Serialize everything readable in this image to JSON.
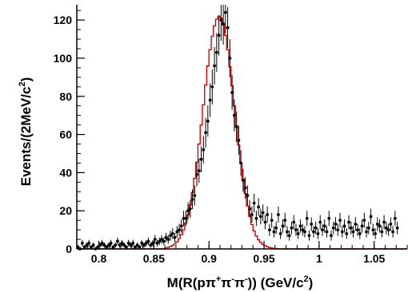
{
  "chart_data": {
    "type": "scatter",
    "title": "",
    "xlabel": {
      "main": "M(R(p",
      "pi1": "π",
      "sup1": "+",
      "pi2": "π",
      "sup2": "-",
      "pi3": "π",
      "sup3": "-",
      "tail": ")) (GeV/c",
      "sup_unit": "2",
      "close": ")"
    },
    "ylabel": {
      "main": "Events/(2MeV/c",
      "sup": "2",
      "close": ")"
    },
    "xlim": [
      0.78,
      1.08
    ],
    "ylim": [
      0,
      128
    ],
    "xticks": [
      {
        "v": 0.8,
        "label": "0.8"
      },
      {
        "v": 0.85,
        "label": "0.85"
      },
      {
        "v": 0.9,
        "label": "0.9"
      },
      {
        "v": 0.95,
        "label": "0.95"
      },
      {
        "v": 1.0,
        "label": "1"
      },
      {
        "v": 1.05,
        "label": "1.05"
      }
    ],
    "yticks": [
      {
        "v": 0,
        "label": "0"
      },
      {
        "v": 20,
        "label": "20"
      },
      {
        "v": 40,
        "label": "40"
      },
      {
        "v": 60,
        "label": "60"
      },
      {
        "v": 80,
        "label": "80"
      },
      {
        "v": 100,
        "label": "100"
      },
      {
        "v": 120,
        "label": "120"
      }
    ],
    "bin_width": 0.002,
    "colors": {
      "data": "#000000",
      "fit": "#e00000",
      "axis": "#000000"
    },
    "series": [
      {
        "kind": "data_points_with_errors",
        "x_start": 0.781,
        "y": [
          1,
          0,
          3,
          1,
          2,
          3,
          1,
          2,
          0,
          1,
          2,
          3,
          2,
          1,
          2,
          3,
          1,
          2,
          4,
          2,
          3,
          2,
          1,
          3,
          2,
          3,
          1,
          2,
          1,
          3,
          2,
          3,
          4,
          2,
          3,
          5,
          3,
          4,
          5,
          4,
          6,
          5,
          7,
          8,
          6,
          9,
          10,
          12,
          16,
          16,
          20,
          21,
          26,
          28,
          39,
          41,
          47,
          52,
          61,
          67,
          78,
          85,
          96,
          103,
          112,
          120,
          118,
          124,
          116,
          100,
          82,
          70,
          64,
          57,
          45,
          36,
          32,
          28,
          21,
          18,
          24,
          16,
          22,
          17,
          19,
          14,
          18,
          10,
          15,
          9,
          11,
          18,
          8,
          12,
          15,
          9,
          7,
          11,
          14,
          10,
          8,
          12,
          10,
          9,
          16,
          7,
          13,
          9,
          11,
          8,
          14,
          10,
          12,
          9,
          16,
          7,
          11,
          13,
          10,
          15,
          9,
          12,
          8,
          14,
          11,
          9,
          13,
          10,
          8,
          12,
          15,
          9,
          11,
          17,
          10,
          8,
          13,
          12,
          9,
          14,
          11,
          10,
          13,
          9,
          16,
          11
        ]
      },
      {
        "kind": "fit_histogram",
        "x_start": 0.78,
        "y": [
          0,
          0,
          0,
          0,
          0,
          0,
          0,
          0,
          0,
          0,
          0,
          0,
          0,
          0,
          0,
          0,
          0,
          0,
          0,
          0,
          0,
          0,
          0,
          0,
          0,
          0,
          0,
          0,
          0,
          0,
          0,
          0,
          0,
          0,
          0,
          0,
          0,
          0,
          0,
          0,
          0.5,
          0.8,
          1.2,
          1.8,
          2.6,
          3.8,
          5.4,
          7.5,
          10,
          13.5,
          17.8,
          23,
          29.5,
          37,
          45.5,
          55,
          65,
          75.5,
          86,
          96,
          104.5,
          111.5,
          117,
          120.5,
          122,
          121,
          117.5,
          112,
          104.5,
          95.5,
          85.5,
          75,
          64.5,
          54.5,
          45,
          36.5,
          29,
          22.5,
          17.2,
          12.8,
          9.4,
          6.8,
          4.8,
          3.4,
          2.4,
          1.7,
          1.2,
          0.8,
          0.5,
          0.3,
          0.2,
          0.1,
          0.1,
          0.05,
          0,
          0,
          0,
          0,
          0,
          0,
          0,
          0,
          0,
          0,
          0,
          0,
          0,
          0,
          0,
          0,
          0,
          0,
          0,
          0,
          0,
          0,
          0,
          0,
          0,
          0,
          0,
          0,
          0,
          0,
          0,
          0,
          0,
          0,
          0,
          0,
          0,
          0,
          0,
          0,
          0,
          0,
          0,
          0,
          0,
          0,
          0,
          0,
          0,
          0,
          0,
          0,
          0,
          0,
          0,
          0,
          0,
          0
        ]
      }
    ]
  }
}
